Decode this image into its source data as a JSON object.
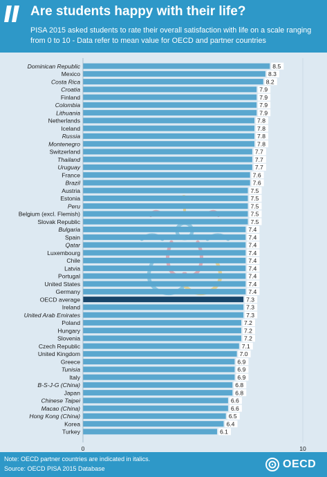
{
  "header": {
    "title": "Are students happy with their life?",
    "subtitle": "PISA 2015 asked students to rate their overall satisfaction with life on a scale ranging from 0 to 10 - Data refer to mean value for OECD and partner countries"
  },
  "footer": {
    "note": "Note: OECD partner countries are indicated in italics.",
    "source": "Source: OECD PISA 2015 Database",
    "logo_text": "OECD"
  },
  "colors": {
    "header_bg": "#2e98c8",
    "panel_bg": "#dde9f2",
    "bar": "#5aa7cf",
    "bar_highlight": "#17456a",
    "value_label_bg": "#ffffff"
  },
  "chart_data": {
    "type": "bar",
    "orientation": "horizontal",
    "title": "Are students happy with their life?",
    "xlim": [
      0,
      10
    ],
    "x_ticks": [
      "0",
      "10"
    ],
    "highlight_category": "OECD average",
    "categories": [
      {
        "name": "Dominican Republic",
        "value": 8.5,
        "partner": true
      },
      {
        "name": "Mexico",
        "value": 8.3,
        "partner": false
      },
      {
        "name": "Costa Rica",
        "value": 8.2,
        "partner": true
      },
      {
        "name": "Croatia",
        "value": 7.9,
        "partner": true
      },
      {
        "name": "Finland",
        "value": 7.9,
        "partner": false
      },
      {
        "name": "Colombia",
        "value": 7.9,
        "partner": true
      },
      {
        "name": "Lithuania",
        "value": 7.9,
        "partner": true
      },
      {
        "name": "Netherlands",
        "value": 7.8,
        "partner": false
      },
      {
        "name": "Iceland",
        "value": 7.8,
        "partner": false
      },
      {
        "name": "Russia",
        "value": 7.8,
        "partner": true
      },
      {
        "name": "Montenegro",
        "value": 7.8,
        "partner": true
      },
      {
        "name": "Switzerland",
        "value": 7.7,
        "partner": false
      },
      {
        "name": "Thailand",
        "value": 7.7,
        "partner": true
      },
      {
        "name": "Uruguay",
        "value": 7.7,
        "partner": true
      },
      {
        "name": "France",
        "value": 7.6,
        "partner": false
      },
      {
        "name": "Brazil",
        "value": 7.6,
        "partner": true
      },
      {
        "name": "Austria",
        "value": 7.5,
        "partner": false
      },
      {
        "name": "Estonia",
        "value": 7.5,
        "partner": false
      },
      {
        "name": "Peru",
        "value": 7.5,
        "partner": true
      },
      {
        "name": "Belgium (excl. Flemish)",
        "value": 7.5,
        "partner": false
      },
      {
        "name": "Slovak Republic",
        "value": 7.5,
        "partner": false
      },
      {
        "name": "Bulgaria",
        "value": 7.4,
        "partner": true
      },
      {
        "name": "Spain",
        "value": 7.4,
        "partner": false
      },
      {
        "name": "Qatar",
        "value": 7.4,
        "partner": true
      },
      {
        "name": "Luxembourg",
        "value": 7.4,
        "partner": false
      },
      {
        "name": "Chile",
        "value": 7.4,
        "partner": false
      },
      {
        "name": "Latvia",
        "value": 7.4,
        "partner": false
      },
      {
        "name": "Portugal",
        "value": 7.4,
        "partner": false
      },
      {
        "name": "United States",
        "value": 7.4,
        "partner": false
      },
      {
        "name": "Germany",
        "value": 7.4,
        "partner": false
      },
      {
        "name": "OECD average",
        "value": 7.3,
        "partner": false
      },
      {
        "name": "Ireland",
        "value": 7.3,
        "partner": false
      },
      {
        "name": "United Arab Emirates",
        "value": 7.3,
        "partner": true
      },
      {
        "name": "Poland",
        "value": 7.2,
        "partner": false
      },
      {
        "name": "Hungary",
        "value": 7.2,
        "partner": false
      },
      {
        "name": "Slovenia",
        "value": 7.2,
        "partner": false
      },
      {
        "name": "Czech Republic",
        "value": 7.1,
        "partner": false
      },
      {
        "name": "United Kingdom",
        "value": 7.0,
        "partner": false
      },
      {
        "name": "Greece",
        "value": 6.9,
        "partner": false
      },
      {
        "name": "Tunisia",
        "value": 6.9,
        "partner": true
      },
      {
        "name": "Italy",
        "value": 6.9,
        "partner": false
      },
      {
        "name": "B-S-J-G (China)",
        "value": 6.8,
        "partner": true
      },
      {
        "name": "Japan",
        "value": 6.8,
        "partner": false
      },
      {
        "name": "Chinese Taipei",
        "value": 6.6,
        "partner": true
      },
      {
        "name": "Macao (China)",
        "value": 6.6,
        "partner": true
      },
      {
        "name": "Hong Kong (China)",
        "value": 6.5,
        "partner": true
      },
      {
        "name": "Korea",
        "value": 6.4,
        "partner": false
      },
      {
        "name": "Turkey",
        "value": 6.1,
        "partner": false
      }
    ]
  }
}
